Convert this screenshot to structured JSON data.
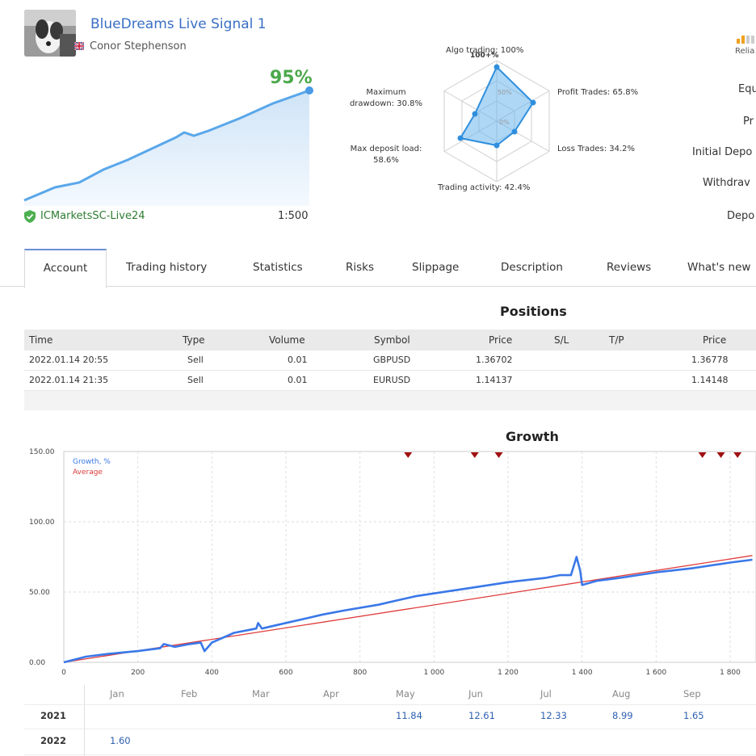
{
  "signal": {
    "title": "BlueDreams Live Signal 1",
    "author": "Conor Stephenson",
    "growth_pct": "95%",
    "server": "ICMarketsSC-Live24",
    "leverage": "1:500"
  },
  "radar": {
    "algo": "Algo trading: 100%",
    "profit": "Profit Trades: 65.8%",
    "loss": "Loss Trades: 34.2%",
    "activity": "Trading activity: 42.4%",
    "deposit_load_1": "Max deposit load:",
    "deposit_load_2": "58.6%",
    "drawdown_1": "Maximum",
    "drawdown_2": "drawdown: 30.8%",
    "ring_100": "100+%",
    "ring_50": "50%",
    "ring_0": "0%"
  },
  "right_metrics": {
    "reliability": "Relia",
    "equity": "Equ",
    "profit": "Pr",
    "initial_deposit": "Initial Depo",
    "withdrawals": "Withdrav",
    "deposits": "Depo"
  },
  "tabs": [
    "Account",
    "Trading history",
    "Statistics",
    "Risks",
    "Slippage",
    "Description",
    "Reviews",
    "What's new"
  ],
  "positions": {
    "title": "Positions",
    "headers": [
      "Time",
      "Type",
      "Volume",
      "Symbol",
      "Price",
      "S/L",
      "T/P",
      "Price"
    ],
    "rows": [
      [
        "2022.01.14 20:55",
        "Sell",
        "0.01",
        "GBPUSD",
        "1.36702",
        "",
        "",
        "1.36778"
      ],
      [
        "2022.01.14 21:35",
        "Sell",
        "0.01",
        "EURUSD",
        "1.14137",
        "",
        "",
        "1.14148"
      ]
    ]
  },
  "growth": {
    "title": "Growth",
    "legend_growth": "Growth, %",
    "legend_average": "Average"
  },
  "chart_data": {
    "type": "line",
    "title": "Growth",
    "x_ticks": [
      "0",
      "200",
      "400",
      "600",
      "800",
      "1 000",
      "1 200",
      "1 400",
      "1 600",
      "1 800"
    ],
    "y_ticks": [
      "0.00",
      "50.00",
      "100.00",
      "150.00"
    ],
    "xlim": [
      0,
      1860
    ],
    "ylim": [
      0,
      150
    ],
    "grid": true,
    "legend_position": "top-left",
    "series": [
      {
        "name": "Growth, %",
        "color": "#3a78e8",
        "x": [
          0,
          60,
          120,
          200,
          260,
          270,
          300,
          340,
          370,
          380,
          400,
          460,
          520,
          525,
          535,
          600,
          650,
          700,
          760,
          850,
          900,
          950,
          1000,
          1100,
          1200,
          1300,
          1340,
          1370,
          1385,
          1395,
          1400,
          1440,
          1500,
          1550,
          1600,
          1700,
          1800,
          1860
        ],
        "y": [
          0,
          4,
          6,
          8,
          10,
          13,
          11,
          13,
          14,
          8,
          14,
          21,
          24,
          28,
          24,
          28,
          31,
          34,
          37,
          41,
          44,
          47,
          49,
          53,
          57,
          60,
          62,
          62,
          75,
          65,
          55,
          58,
          60,
          62,
          64,
          67,
          71,
          73
        ]
      },
      {
        "name": "Average",
        "color": "#e03a3a",
        "x": [
          0,
          1860
        ],
        "y": [
          0,
          76
        ]
      }
    ],
    "deal_markers_x": [
      930,
      1110,
      1175,
      1725,
      1775,
      1820
    ]
  },
  "monthly": {
    "months": [
      "Jan",
      "Feb",
      "Mar",
      "Apr",
      "May",
      "Jun",
      "Jul",
      "Aug",
      "Sep"
    ],
    "rows": [
      {
        "year": "2021",
        "values": [
          "",
          "",
          "",
          "",
          "11.84",
          "12.61",
          "12.33",
          "8.99",
          "1.65"
        ]
      },
      {
        "year": "2022",
        "values": [
          "1.60",
          "",
          "",
          "",
          "",
          "",
          "",
          "",
          ""
        ]
      }
    ]
  },
  "colors": {
    "accent_blue": "#3a6fc4",
    "growth_green": "#4ca84a",
    "server_green": "#2e7d32",
    "line_blue": "#3a78e8",
    "average_red": "#e03a3a",
    "marker_red": "#a01010"
  }
}
